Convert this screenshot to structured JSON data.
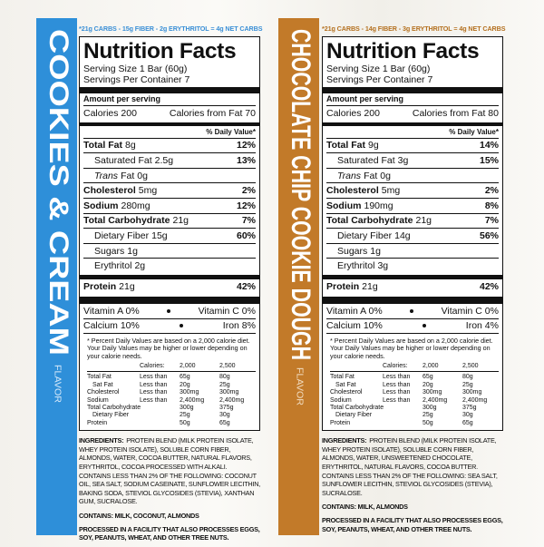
{
  "panels": [
    {
      "net_carbs": "*21g CARBS - 15g FIBER - 2g ERYTHRITOL = 4g NET CARBS",
      "flavor": "COOKIES & CREAM",
      "flavor_label": "FLAVOR",
      "facts": {
        "title": "Nutrition Facts",
        "serving_size": "Serving Size 1 Bar (60g)",
        "servings": "Servings Per Container 7",
        "amount_per_serving": "Amount per serving",
        "calories": "Calories 200",
        "calories_from_fat": "Calories from Fat 70",
        "daily_value_header": "% Daily Value*",
        "rows": [
          {
            "name": "Total Fat",
            "amount": "8g",
            "dv": "12%"
          },
          {
            "name": "Saturated Fat",
            "amount": "2.5g",
            "dv": "13%"
          },
          {
            "prefix": "Trans",
            "name": "Fat",
            "amount": "0g"
          },
          {
            "name": "Cholesterol",
            "amount": "5mg",
            "dv": "2%"
          },
          {
            "name": "Sodium",
            "amount": "280mg",
            "dv": "12%"
          },
          {
            "name": "Total Carbohydrate",
            "amount": "21g",
            "dv": "7%"
          },
          {
            "name": "Dietary Fiber",
            "amount": "15g",
            "dv": "60%"
          },
          {
            "name": "Sugars",
            "amount": "1g"
          },
          {
            "name": "Erythritol",
            "amount": "2g"
          },
          {
            "name": "Protein",
            "amount": "21g",
            "dv": "42%"
          }
        ],
        "vitamins": [
          [
            "Vitamin A 0%",
            "Vitamin C 0%"
          ],
          [
            "Calcium 10%",
            "Iron 8%"
          ]
        ],
        "footnote": "* Percent Daily Values are based on a 2,000 calorie diet. Your Daily Values may be higher or lower depending on your calorie needs.",
        "dv_table": {
          "header": [
            "Calories:",
            "2,000",
            "2,500"
          ],
          "rows": [
            [
              "Total Fat",
              "Less than",
              "65g",
              "80g"
            ],
            [
              "Sat Fat",
              "Less than",
              "20g",
              "25g"
            ],
            [
              "Cholesterol",
              "Less than",
              "300mg",
              "300mg"
            ],
            [
              "Sodium",
              "Less than",
              "2,400mg",
              "2,400mg"
            ],
            [
              "Total Carbohydrate",
              null,
              "300g",
              "375g"
            ],
            [
              "Dietary Fiber",
              null,
              "25g",
              "30g"
            ],
            [
              "Protein",
              null,
              "50g",
              "65g"
            ]
          ]
        }
      },
      "ingredients_label": "INGREDIENTS:",
      "ingredients": "PROTEIN BLEND (MILK PROTEIN ISOLATE, WHEY PROTEIN ISOLATE), SOLUBLE CORN FIBER, ALMONDS, WATER, COCOA BUTTER, NATURAL FLAVORS, ERYTHRITOL, COCOA PROCESSED WITH ALKALI. CONTAINS LESS THAN 2% OF THE FOLLOWING: COCONUT OIL, SEA SALT, SODIUM CASEINATE, SUNFLOWER LECITHIN, BAKING SODA, STEVIOL GLYCOSIDES (STEVIA), XANTHAN GUM, SUCRALOSE.",
      "contains": "CONTAINS: MILK, COCONUT, ALMONDS",
      "facility": "PROCESSED IN A FACILITY THAT ALSO PROCESSES EGGS, SOY, PEANUTS, WHEAT, AND OTHER TREE NUTS."
    },
    {
      "net_carbs": "*21g CARBS - 14g FIBER - 3g ERYTHRITOL = 4g NET CARBS",
      "flavor": "CHOCOLATE CHIP COOKIE DOUGH",
      "flavor_label": "FLAVOR",
      "facts": {
        "title": "Nutrition Facts",
        "serving_size": "Serving Size 1 Bar (60g)",
        "servings": "Servings Per Container 7",
        "amount_per_serving": "Amount per serving",
        "calories": "Calories 200",
        "calories_from_fat": "Calories from Fat 80",
        "daily_value_header": "% Daily Value*",
        "rows": [
          {
            "name": "Total Fat",
            "amount": "9g",
            "dv": "14%"
          },
          {
            "name": "Saturated Fat",
            "amount": "3g",
            "dv": "15%"
          },
          {
            "prefix": "Trans",
            "name": "Fat",
            "amount": "0g"
          },
          {
            "name": "Cholesterol",
            "amount": "5mg",
            "dv": "2%"
          },
          {
            "name": "Sodium",
            "amount": "190mg",
            "dv": "8%"
          },
          {
            "name": "Total Carbohydrate",
            "amount": "21g",
            "dv": "7%"
          },
          {
            "name": "Dietary Fiber",
            "amount": "14g",
            "dv": "56%"
          },
          {
            "name": "Sugars",
            "amount": "1g"
          },
          {
            "name": "Erythritol",
            "amount": "3g"
          },
          {
            "name": "Protein",
            "amount": "21g",
            "dv": "42%"
          }
        ],
        "vitamins": [
          [
            "Vitamin A 0%",
            "Vitamin C 0%"
          ],
          [
            "Calcium 10%",
            "Iron 4%"
          ]
        ],
        "footnote": "* Percent Daily Values are based on a 2,000 calorie diet. Your Daily Values may be higher or lower depending on your calorie needs.",
        "dv_table": {
          "header": [
            "Calories:",
            "2,000",
            "2,500"
          ],
          "rows": [
            [
              "Total Fat",
              "Less than",
              "65g",
              "80g"
            ],
            [
              "Sat Fat",
              "Less than",
              "20g",
              "25g"
            ],
            [
              "Cholesterol",
              "Less than",
              "300mg",
              "300mg"
            ],
            [
              "Sodium",
              "Less than",
              "2,400mg",
              "2,400mg"
            ],
            [
              "Total Carbohydrate",
              null,
              "300g",
              "375g"
            ],
            [
              "Dietary Fiber",
              null,
              "25g",
              "30g"
            ],
            [
              "Protein",
              null,
              "50g",
              "65g"
            ]
          ]
        }
      },
      "ingredients_label": "INGREDIENTS:",
      "ingredients": "PROTEIN BLEND (MILK PROTEIN ISOLATE, WHEY PROTEIN ISOLATE), SOLUBLE CORN FIBER, ALMONDS, WATER, UNSWEETENED CHOCOLATE, ERYTHRITOL, NATURAL FLAVORS, COCOA BUTTER. CONTAINS LESS THAN 2% OF THE FOLLOWING: SEA SALT, SUNFLOWER LECITHIN, STEVIOL GLYCOSIDES (STEVIA), SUCRALOSE.",
      "contains": "CONTAINS: MILK, ALMONDS",
      "facility": "PROCESSED IN A FACILITY THAT ALSO PROCESSES EGGS, SOY, PEANUTS, WHEAT, AND OTHER TREE NUTS."
    }
  ]
}
